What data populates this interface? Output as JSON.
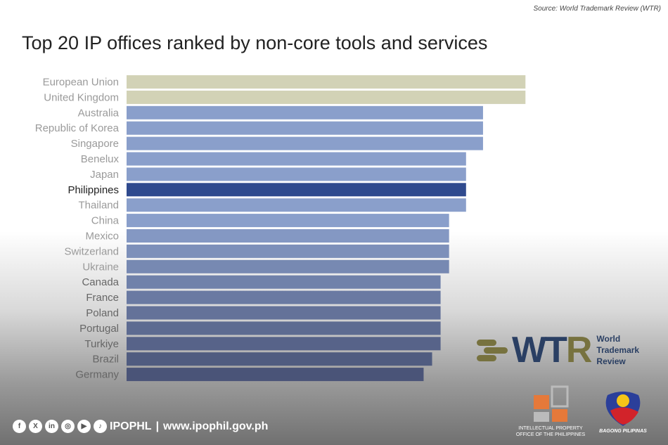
{
  "source": "Source: World Trademark Review (WTR)",
  "chart_data": {
    "type": "bar",
    "orientation": "horizontal",
    "title": "Top 20 IP offices ranked by non-core tools and services",
    "xlabel": "",
    "ylabel": "",
    "categories": [
      "European Union",
      "United Kingdom",
      "Australia",
      "Republic of Korea",
      "Singapore",
      "Benelux",
      "Japan",
      "Philippines",
      "Thailand",
      "China",
      "Mexico",
      "Switzerland",
      "Ukraine",
      "Canada",
      "France",
      "Poland",
      "Portugal",
      "Turkiye",
      "Brazil",
      "Germany"
    ],
    "values": [
      47,
      47,
      42,
      42,
      42,
      40,
      40,
      40,
      40,
      38,
      38,
      38,
      38,
      37,
      37,
      37,
      37,
      37,
      36,
      35
    ],
    "highlight": "Philippines",
    "colors": {
      "top": "#d2d2b6",
      "highlight": "#2f4a8e",
      "light": "#8a9fcb",
      "dark": "#4a5478"
    }
  },
  "wtr": {
    "abbr1": "WT",
    "abbr2": "R",
    "line1": "World",
    "line2": "Trademark",
    "line3": "Review"
  },
  "footer": {
    "brand": "IPOPHL",
    "sep": "|",
    "url": "www.ipophil.gov.ph",
    "social": [
      "facebook-icon",
      "x-icon",
      "linkedin-icon",
      "instagram-icon",
      "youtube-icon",
      "tiktok-icon"
    ]
  },
  "ipo_logo": {
    "line1": "INTELLECTUAL PROPERTY",
    "line2": "OFFICE OF THE PHILIPPINES"
  },
  "bp_logo": {
    "text": "BAGONG PILIPINAS"
  }
}
